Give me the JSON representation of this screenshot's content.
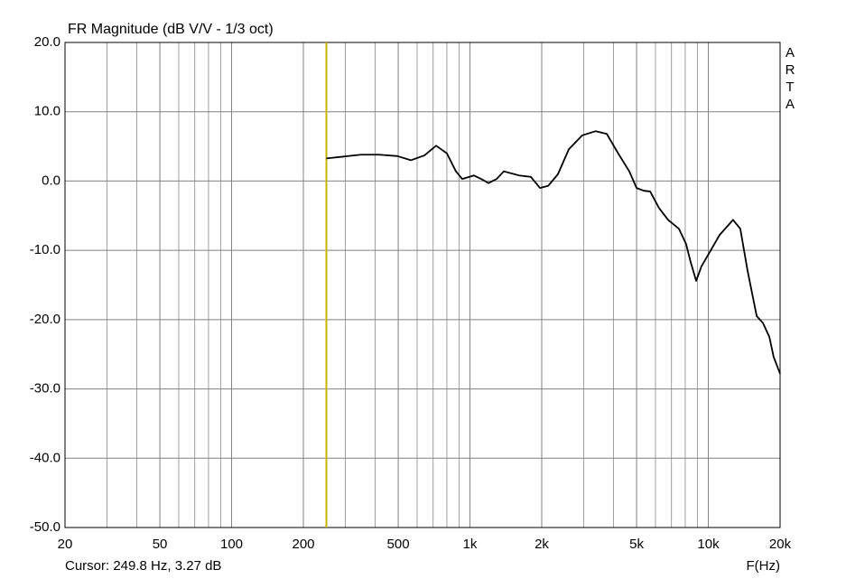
{
  "chart_data": {
    "type": "line",
    "title": "FR Magnitude (dB V/V - 1/3 oct)",
    "side_label": "ARTA",
    "x_axis_label": "F(Hz)",
    "cursor": {
      "x": 249.8,
      "text": "Cursor: 249.8 Hz, 3.27 dB",
      "color": "#c8b400"
    },
    "x_log": true,
    "grid": true,
    "color": "#000000",
    "xlim": [
      20,
      20000
    ],
    "ylim": [
      -50,
      20
    ],
    "xticks": [
      20,
      50,
      100,
      200,
      500,
      {
        "value": 1000,
        "label": "1k"
      },
      {
        "value": 2000,
        "label": "2k"
      },
      {
        "value": 5000,
        "label": "5k"
      },
      {
        "value": 10000,
        "label": "10k"
      },
      {
        "value": 20000,
        "label": "20k"
      }
    ],
    "xminor": [
      30,
      40,
      60,
      70,
      80,
      90,
      300,
      400,
      600,
      700,
      800,
      900,
      3000,
      4000,
      6000,
      7000,
      8000,
      9000
    ],
    "yticks": [
      {
        "value": 20,
        "label": "20.0"
      },
      {
        "value": 10,
        "label": "10.0"
      },
      {
        "value": 0,
        "label": "0.0"
      },
      {
        "value": -10,
        "label": "-10.0"
      },
      {
        "value": -20,
        "label": "-20.0"
      },
      {
        "value": -30,
        "label": "-30.0"
      },
      {
        "value": -40,
        "label": "-40.0"
      },
      {
        "value": -50,
        "label": "-50.0"
      }
    ],
    "x": [
      249.8,
      349,
      416,
      496,
      565,
      644,
      721,
      800,
      873,
      928,
      1040,
      1115,
      1196,
      1294,
      1387,
      1608,
      1800,
      1966,
      2128,
      2340,
      2600,
      2960,
      3370,
      3750,
      4200,
      4660,
      5000,
      5360,
      5700,
      6210,
      6780,
      7530,
      8070,
      8430,
      8890,
      9360,
      10000,
      11140,
      12700,
      13620,
      14620,
      15960,
      16960,
      18030,
      18800,
      20000
    ],
    "values": [
      3.27,
      3.8,
      3.8,
      3.6,
      3.0,
      3.7,
      5.1,
      4.0,
      1.4,
      0.3,
      0.8,
      0.3,
      -0.3,
      0.3,
      1.4,
      0.8,
      0.6,
      -1.0,
      -0.7,
      1.0,
      4.6,
      6.6,
      7.2,
      6.8,
      3.9,
      1.4,
      -1.0,
      -1.4,
      -1.5,
      -3.9,
      -5.6,
      -6.9,
      -9.1,
      -11.7,
      -14.4,
      -12.3,
      -10.6,
      -7.8,
      -5.6,
      -6.9,
      -13.0,
      -19.5,
      -20.5,
      -22.5,
      -25.4,
      -27.8
    ]
  }
}
